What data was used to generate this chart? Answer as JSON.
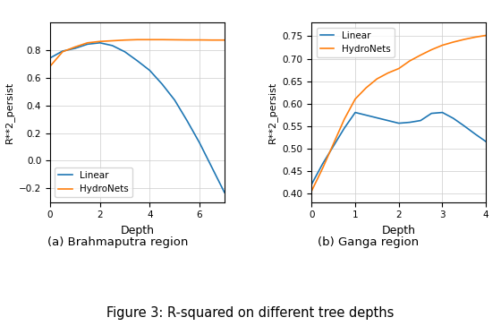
{
  "title": "Figure 3: R-squared on different tree depths",
  "subplot_a_title": "(a) Brahmaputra region",
  "subplot_b_title": "(b) Ganga region",
  "ylabel": "R**2_persist",
  "xlabel": "Depth",
  "color_linear": "#1f77b4",
  "color_hydronets": "#ff7f0e",
  "legend_labels": [
    "Linear",
    "HydroNets"
  ],
  "brahmaputra": {
    "linear_x": [
      0,
      0.5,
      1.0,
      1.5,
      2.0,
      2.5,
      3.0,
      3.5,
      4.0,
      4.5,
      5.0,
      5.5,
      6.0,
      6.5,
      7.0
    ],
    "linear_y": [
      0.745,
      0.795,
      0.815,
      0.845,
      0.855,
      0.835,
      0.79,
      0.725,
      0.655,
      0.555,
      0.44,
      0.29,
      0.13,
      -0.05,
      -0.23
    ],
    "hydronets_x": [
      0,
      0.5,
      1.0,
      1.5,
      2.0,
      2.5,
      3.0,
      3.5,
      4.0,
      4.5,
      5.0,
      5.5,
      6.0,
      6.5,
      7.0
    ],
    "hydronets_y": [
      0.685,
      0.79,
      0.825,
      0.855,
      0.865,
      0.87,
      0.875,
      0.878,
      0.878,
      0.878,
      0.877,
      0.876,
      0.876,
      0.875,
      0.875
    ],
    "xlim": [
      0,
      7
    ],
    "ylim": [
      -0.3,
      1.0
    ],
    "yticks": [
      -0.2,
      0.0,
      0.2,
      0.4,
      0.6,
      0.8
    ]
  },
  "ganga": {
    "linear_x": [
      0,
      0.25,
      0.5,
      0.75,
      1.0,
      1.25,
      1.5,
      1.75,
      2.0,
      2.25,
      2.5,
      2.75,
      3.0,
      3.25,
      3.5,
      3.75,
      4.0
    ],
    "linear_y": [
      0.42,
      0.465,
      0.505,
      0.545,
      0.58,
      0.574,
      0.568,
      0.562,
      0.556,
      0.558,
      0.562,
      0.578,
      0.58,
      0.567,
      0.55,
      0.532,
      0.515
    ],
    "hydronets_x": [
      0,
      0.25,
      0.5,
      0.75,
      1.0,
      1.25,
      1.5,
      1.75,
      2.0,
      2.25,
      2.5,
      2.75,
      3.0,
      3.25,
      3.5,
      3.75,
      4.0
    ],
    "hydronets_y": [
      0.405,
      0.455,
      0.51,
      0.565,
      0.61,
      0.635,
      0.655,
      0.668,
      0.678,
      0.695,
      0.708,
      0.72,
      0.73,
      0.737,
      0.743,
      0.748,
      0.752
    ],
    "xlim": [
      0,
      4
    ],
    "ylim": [
      0.38,
      0.78
    ],
    "yticks": [
      0.4,
      0.45,
      0.5,
      0.55,
      0.6,
      0.65,
      0.7,
      0.75
    ]
  }
}
